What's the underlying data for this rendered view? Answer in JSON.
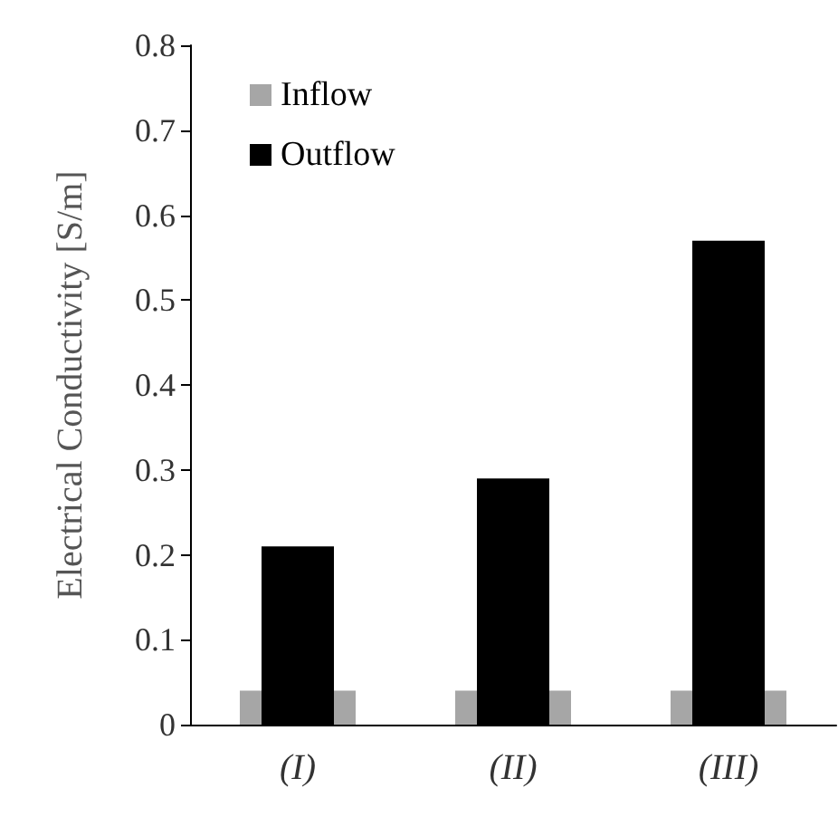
{
  "chart_data": {
    "type": "bar",
    "ylabel": "Electrical Conductivity [S/m]",
    "categories": [
      "(I)",
      "(II)",
      "(III)"
    ],
    "series": [
      {
        "name": "Inflow",
        "color": "#a6a6a6",
        "values": [
          0.04,
          0.04,
          0.04
        ]
      },
      {
        "name": "Outflow",
        "color": "#000000",
        "values": [
          0.21,
          0.29,
          0.57
        ]
      }
    ],
    "ylim": [
      0,
      0.8
    ],
    "yticks": [
      0,
      0.1,
      0.2,
      0.3,
      0.4,
      0.5,
      0.6,
      0.7,
      0.8
    ],
    "grid": false,
    "legend": "top left"
  }
}
